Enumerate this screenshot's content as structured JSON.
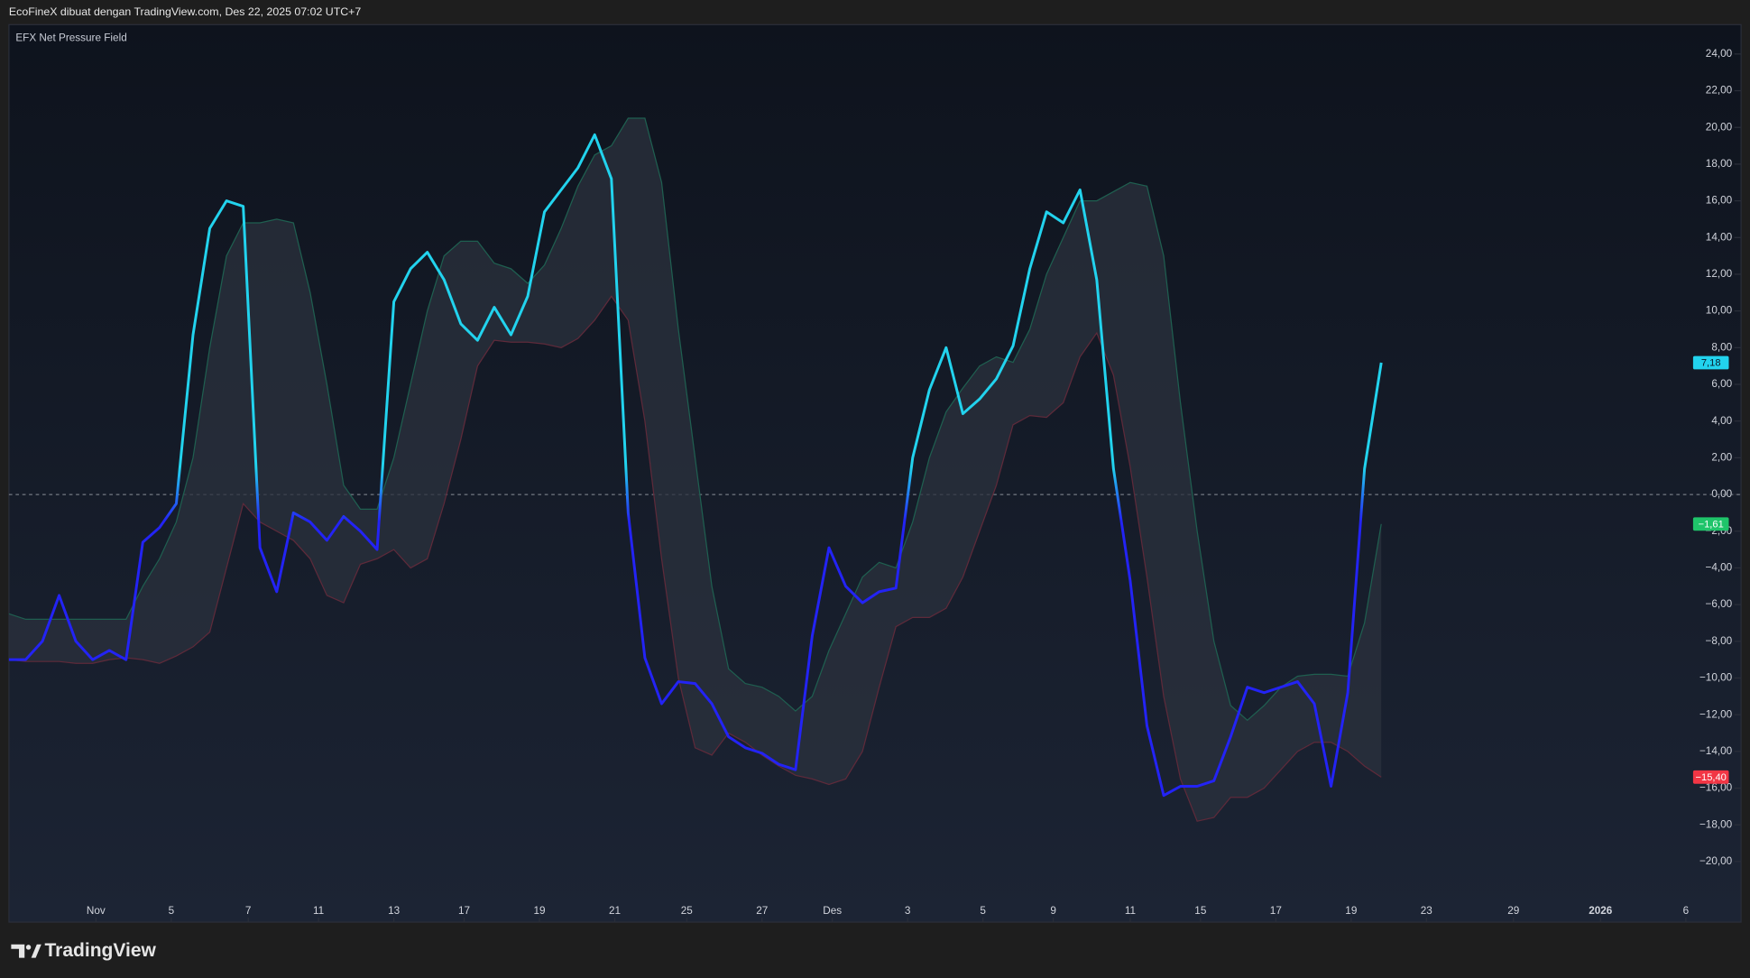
{
  "header": "EcoFineX dibuat dengan TradingView.com, Des 22, 2025 07:02 UTC+7",
  "footer": "TradingView",
  "chart_data": {
    "type": "line",
    "title": "EFX Net Pressure Field",
    "xlim": [
      0,
      103.5
    ],
    "xticks": [
      {
        "value": 5.2,
        "label": "Nov"
      },
      {
        "value": 9.7,
        "label": "5"
      },
      {
        "value": 14.3,
        "label": "7"
      },
      {
        "value": 18.5,
        "label": "11"
      },
      {
        "value": 23,
        "label": "13"
      },
      {
        "value": 27.2,
        "label": "17"
      },
      {
        "value": 31.7,
        "label": "19"
      },
      {
        "value": 36.2,
        "label": "21"
      },
      {
        "value": 40.5,
        "label": "25"
      },
      {
        "value": 45,
        "label": "27"
      },
      {
        "value": 49.2,
        "label": "Des"
      },
      {
        "value": 53.7,
        "label": "3"
      },
      {
        "value": 58.2,
        "label": "5"
      },
      {
        "value": 62.4,
        "label": "9"
      },
      {
        "value": 67,
        "label": "11"
      },
      {
        "value": 71.2,
        "label": "15"
      },
      {
        "value": 75.7,
        "label": "17"
      },
      {
        "value": 80.2,
        "label": "19"
      },
      {
        "value": 84.7,
        "label": "23"
      },
      {
        "value": 89.9,
        "label": "29"
      },
      {
        "value": 95.1,
        "label": "2026"
      },
      {
        "value": 100.2,
        "label": "6"
      }
    ],
    "ylim": [
      -23.3,
      25.6
    ],
    "yticks": [
      {
        "value": -20,
        "label": "−20,00"
      },
      {
        "value": -18,
        "label": "−18,00"
      },
      {
        "value": -16,
        "label": "−16,00"
      },
      {
        "value": -14,
        "label": "−14,00"
      },
      {
        "value": -12,
        "label": "−12,00"
      },
      {
        "value": -10,
        "label": "−10,00"
      },
      {
        "value": -8,
        "label": "−8,00"
      },
      {
        "value": -6,
        "label": "−6,00"
      },
      {
        "value": -4,
        "label": "−4,00"
      },
      {
        "value": -2,
        "label": "−2,00"
      },
      {
        "value": 0,
        "label": "0,00"
      },
      {
        "value": 2,
        "label": "2,00"
      },
      {
        "value": 4,
        "label": "4,00"
      },
      {
        "value": 6,
        "label": "6,00"
      },
      {
        "value": 8,
        "label": "8,00"
      },
      {
        "value": 10,
        "label": "10,00"
      },
      {
        "value": 12,
        "label": "12,00"
      },
      {
        "value": 14,
        "label": "14,00"
      },
      {
        "value": 16,
        "label": "16,00"
      },
      {
        "value": 18,
        "label": "18,00"
      },
      {
        "value": 20,
        "label": "20,00"
      },
      {
        "value": 22,
        "label": "22,00"
      },
      {
        "value": 24,
        "label": "24,00"
      }
    ],
    "hline": 0,
    "band_fill": "#2b323d",
    "series": [
      {
        "colors": [
          "#2323f5",
          "#22d3ee"
        ],
        "label_color": "#22d3ee",
        "last_label": "7,18",
        "values": [
          -9.0,
          -9.0,
          -8.0,
          -5.5,
          -8.0,
          -9.0,
          -8.5,
          -9.0,
          -2.6,
          -1.8,
          -0.5,
          8.7,
          14.5,
          16.0,
          15.7,
          -2.9,
          -5.3,
          -1.0,
          -1.5,
          -2.5,
          -1.2,
          -2.0,
          -3.0,
          10.5,
          12.3,
          13.2,
          11.7,
          9.3,
          8.4,
          10.2,
          8.7,
          10.8,
          15.4,
          16.6,
          17.8,
          19.6,
          17.2,
          -1.0,
          -8.9,
          -11.4,
          -10.2,
          -10.3,
          -11.4,
          -13.2,
          -13.8,
          -14.1,
          -14.7,
          -15.0,
          -7.7,
          -2.9,
          -5.0,
          -5.9,
          -5.3,
          -5.1,
          2.0,
          5.7,
          8.0,
          4.4,
          5.2,
          6.3,
          8.1,
          12.3,
          15.4,
          14.8,
          16.6,
          11.7,
          1.4,
          -4.7,
          -12.6,
          -16.4,
          -15.9,
          -15.9,
          -15.6,
          -13.2,
          -10.5,
          -10.8,
          -10.5,
          -10.2,
          -11.4,
          -15.9,
          -10.8,
          1.4,
          7.18
        ]
      },
      {
        "color": "#1f5f50",
        "label_color": "#1fc46a",
        "last_label": "−1,61",
        "values": [
          -6.5,
          -6.8,
          -6.8,
          -6.8,
          -6.8,
          -6.8,
          -6.8,
          -6.8,
          -5.0,
          -3.5,
          -1.5,
          2,
          8,
          13,
          14.8,
          14.8,
          15,
          14.8,
          11,
          6,
          0.5,
          -0.8,
          -0.8,
          2,
          6,
          10,
          13,
          13.8,
          13.8,
          12.6,
          12.3,
          11.5,
          12.5,
          14.5,
          16.8,
          18.5,
          19,
          20.5,
          20.5,
          17,
          9,
          2,
          -5,
          -9.5,
          -10.3,
          -10.5,
          -11,
          -11.8,
          -11,
          -8.5,
          -6.5,
          -4.5,
          -3.7,
          -4,
          -1.5,
          2,
          4.5,
          5.8,
          7,
          7.5,
          7.2,
          9,
          12,
          14,
          16,
          16,
          16.5,
          17,
          16.8,
          13,
          5,
          -2,
          -8,
          -11.5,
          -12.3,
          -11.5,
          -10.5,
          -9.9,
          -9.8,
          -9.8,
          -9.9,
          -7,
          -1.61
        ]
      },
      {
        "color": "#5e2a3a",
        "label_color": "#f23645",
        "last_label": "−15,40",
        "values": [
          -9.0,
          -9.1,
          -9.1,
          -9.1,
          -9.2,
          -9.2,
          -9.0,
          -8.9,
          -9.0,
          -9.2,
          -8.8,
          -8.3,
          -7.5,
          -4,
          -0.5,
          -1.5,
          -2,
          -2.5,
          -3.5,
          -5.5,
          -5.9,
          -3.8,
          -3.5,
          -3,
          -4,
          -3.5,
          -0.5,
          3,
          7,
          8.4,
          8.3,
          8.3,
          8.2,
          8,
          8.5,
          9.5,
          10.8,
          9.5,
          4,
          -3.5,
          -10,
          -13.8,
          -14.2,
          -13,
          -13.5,
          -14.2,
          -14.8,
          -15.3,
          -15.5,
          -15.8,
          -15.5,
          -14,
          -10.5,
          -7.2,
          -6.7,
          -6.7,
          -6.2,
          -4.5,
          -2,
          0.5,
          3.8,
          4.3,
          4.2,
          5,
          7.5,
          8.8,
          6.5,
          1.5,
          -4.5,
          -11,
          -15.5,
          -17.8,
          -17.6,
          -16.5,
          -16.5,
          -16,
          -15,
          -14,
          -13.5,
          -13.5,
          -14,
          -14.8,
          -15.4
        ]
      }
    ]
  }
}
